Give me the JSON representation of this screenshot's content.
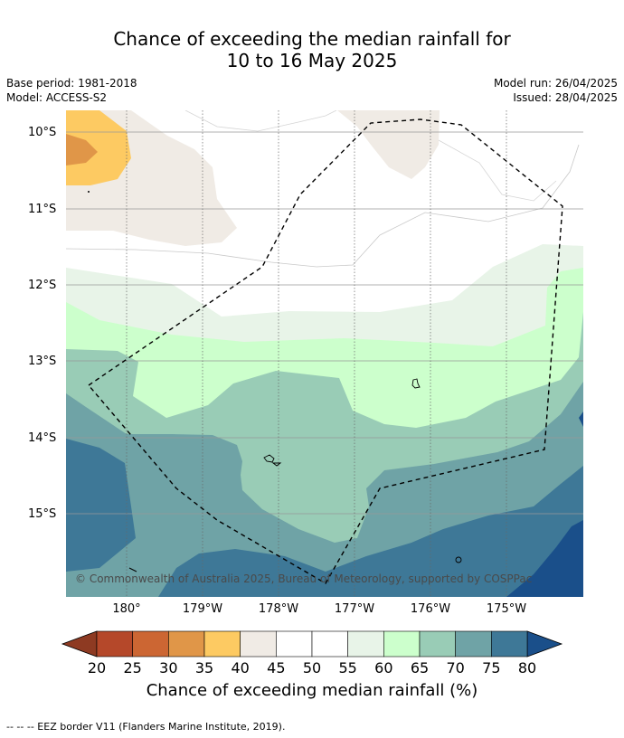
{
  "title_line1": "Chance of exceeding the median rainfall for",
  "title_line2": "10 to 16 May 2025",
  "base_period": "Base period: 1981-2018",
  "model": "Model: ACCESS-S2",
  "model_run": "Model run: 26/04/2025",
  "issued": "Issued: 28/04/2025",
  "copyright": "© Commonwealth of Australia 2025, Bureau of Meteorology, supported by COSPPac",
  "lat_labels": [
    "10°S",
    "11°S",
    "12°S",
    "13°S",
    "14°S",
    "15°S"
  ],
  "lon_labels": [
    "180°",
    "179°W",
    "178°W",
    "177°W",
    "176°W",
    "175°W"
  ],
  "colorbar": {
    "title": "Chance of exceeding median rainfall (%)",
    "ticks": [
      "20",
      "25",
      "30",
      "35",
      "40",
      "45",
      "50",
      "55",
      "60",
      "65",
      "70",
      "75",
      "80"
    ],
    "colors": [
      "#b5482a",
      "#cc6633",
      "#e09648",
      "#fdca62",
      "#f0ebe5",
      "#ffffff",
      "#ffffff",
      "#e8f4e8",
      "#ccffcc",
      "#99ccb6",
      "#6fa3a6",
      "#3e7897"
    ],
    "low_color": "#8e3a22",
    "high_color": "#1a4f8a"
  },
  "footer": "-- -- -- EEZ border V11 (Flanders Marine Institute, 2019)."
}
